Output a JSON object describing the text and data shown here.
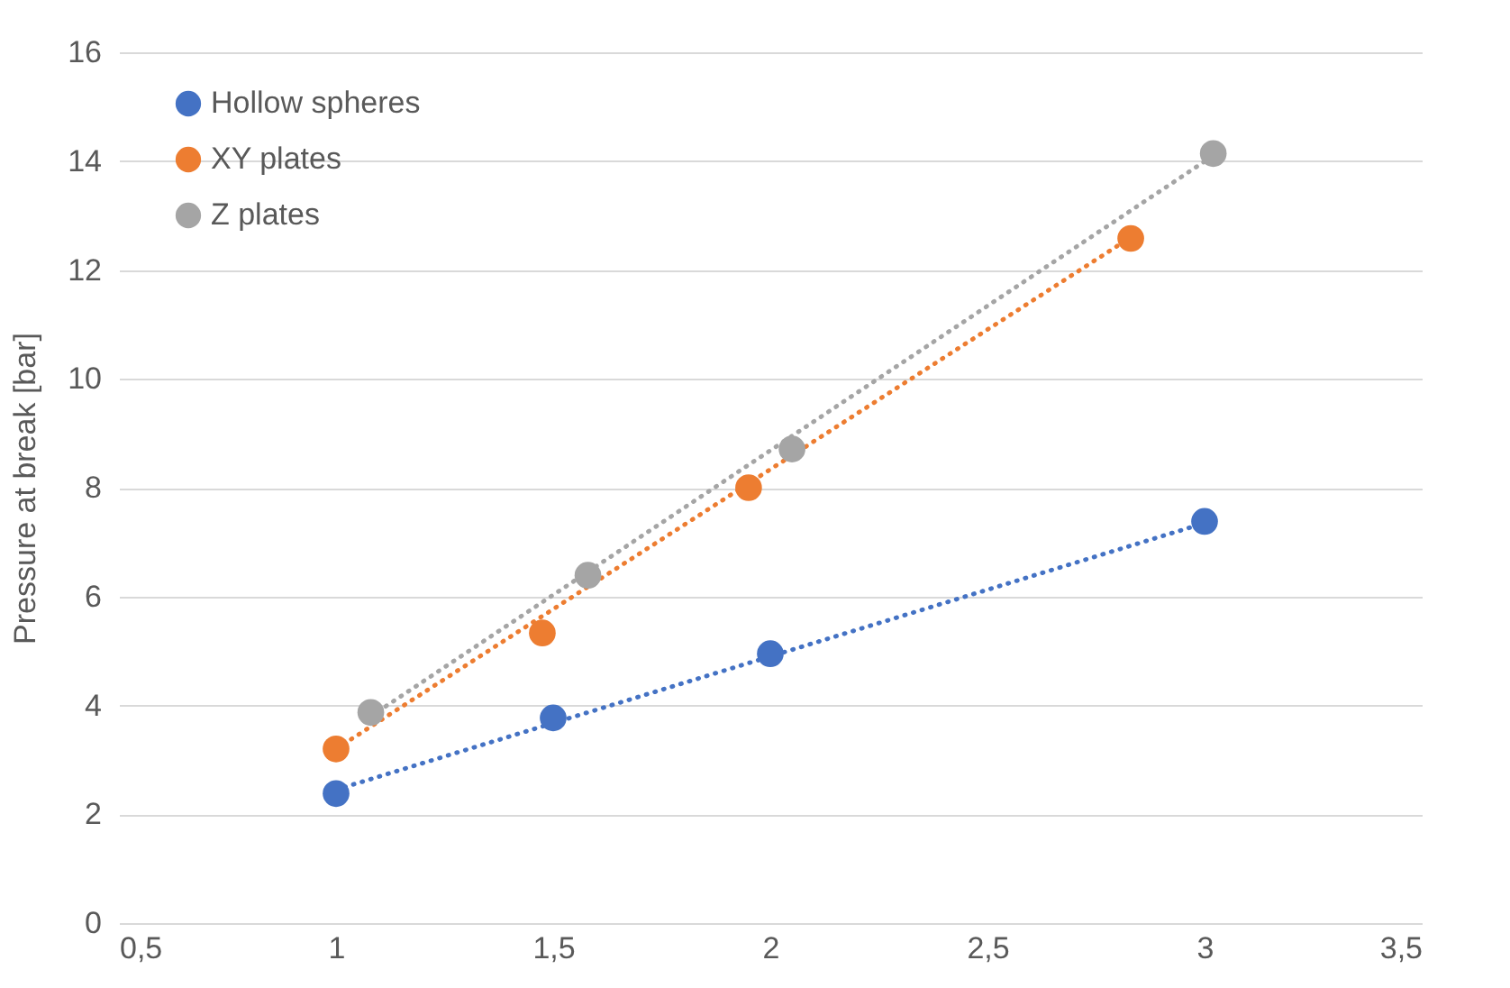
{
  "chart_data": {
    "type": "scatter",
    "ylabel": "Pressure at break [bar]",
    "series": [
      {
        "name": "Hollow spheres",
        "color": "#4472c4",
        "x": [
          1.0,
          1.5,
          2.0,
          3.0
        ],
        "values": [
          2.38,
          3.77,
          4.95,
          7.38
        ]
      },
      {
        "name": "XY plates",
        "color": "#ed7d31",
        "x": [
          1.0,
          1.475,
          1.95,
          2.83
        ],
        "values": [
          3.2,
          5.33,
          8.0,
          12.58
        ]
      },
      {
        "name": "Z plates",
        "color": "#a5a5a5",
        "x": [
          1.08,
          1.58,
          2.05,
          3.02
        ],
        "values": [
          3.87,
          6.39,
          8.71,
          14.14
        ]
      },
      {
        "type": "line",
        "marker": "none",
        "color": "#4472c4",
        "line_style": "dotted",
        "x": [
          1.0,
          3.0
        ],
        "values": [
          2.45,
          7.35
        ]
      },
      {
        "type": "line",
        "marker": "none",
        "color": "#ed7d31",
        "line_style": "dotted",
        "x": [
          1.0,
          2.83
        ],
        "values": [
          3.2,
          12.6
        ]
      },
      {
        "type": "line",
        "marker": "none",
        "color": "#a5a5a5",
        "line_style": "dotted",
        "x": [
          1.08,
          3.02
        ],
        "values": [
          3.8,
          14.1
        ]
      }
    ],
    "marker": "circle",
    "grid": "y",
    "legend": "top left",
    "xlim": [
      0.5,
      3.5
    ],
    "xticks": [
      {
        "value": 0.5,
        "label": "0,5"
      },
      {
        "value": 1,
        "label": "1"
      },
      {
        "value": 1.5,
        "label": "1,5"
      },
      {
        "value": 2,
        "label": "2"
      },
      {
        "value": 2.5,
        "label": "2,5"
      },
      {
        "value": 3,
        "label": "3"
      },
      {
        "value": 3.5,
        "label": "3,5"
      }
    ],
    "ylim": [
      0,
      16
    ],
    "yticks": [
      0,
      2,
      4,
      6,
      8,
      10,
      12,
      14,
      16
    ]
  }
}
